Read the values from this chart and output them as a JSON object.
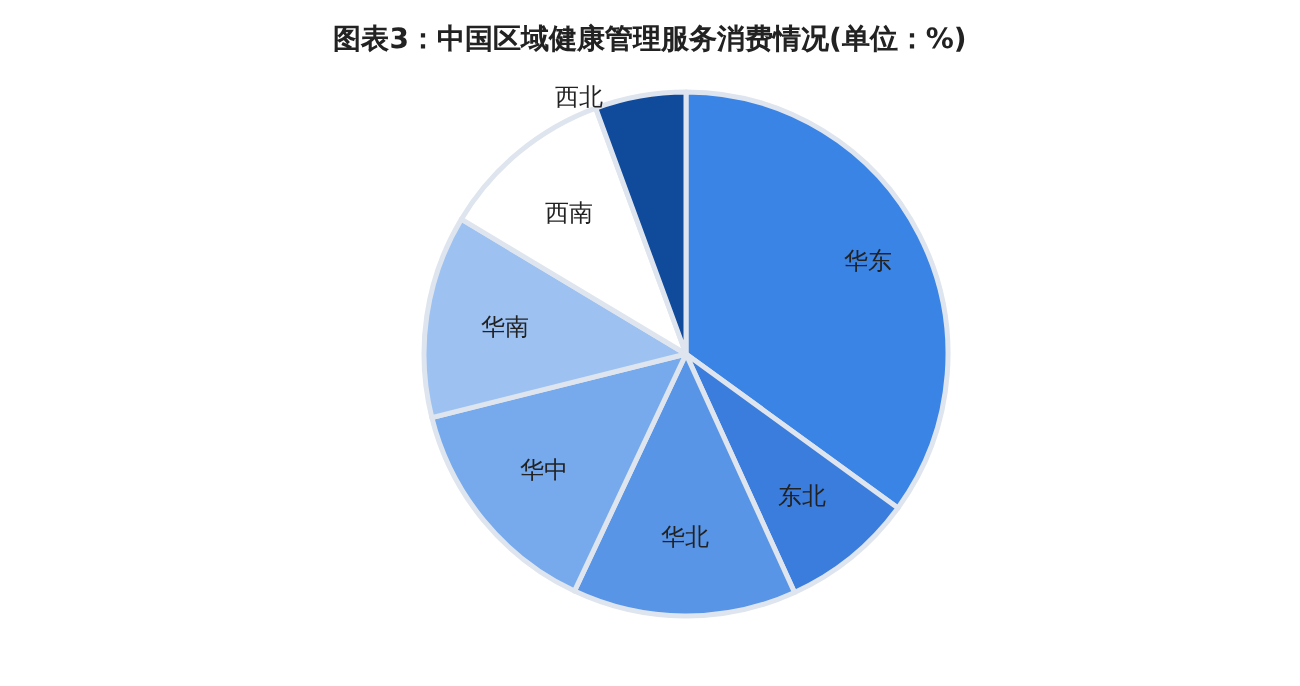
{
  "chart_data": {
    "type": "pie",
    "title": "图表3：中国区域健康管理服务消费情况(单位：%)",
    "categories": [
      "华东",
      "东北",
      "华北",
      "华中",
      "华南",
      "西南",
      "西北"
    ],
    "values": [
      35,
      8.2,
      13.8,
      14.1,
      12.5,
      10.8,
      5.6
    ],
    "colors": [
      "#3a84e6",
      "#3b7ddc",
      "#5895e6",
      "#76aaec",
      "#9dc2f2",
      "#ffffff",
      "#0f4a9b"
    ]
  }
}
